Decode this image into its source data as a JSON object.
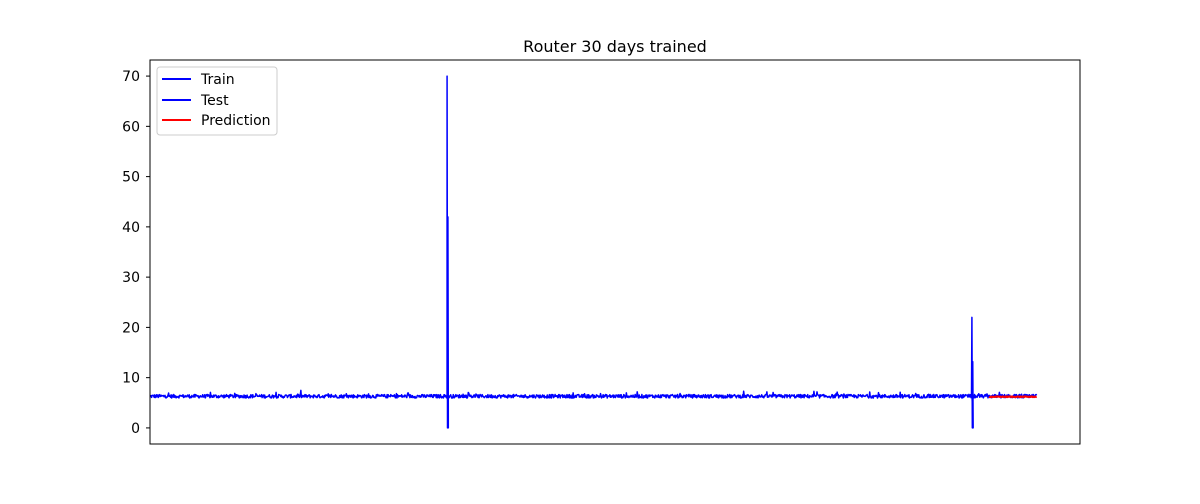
{
  "chart_data": {
    "type": "line",
    "title": "Router 30 days trained",
    "xlabel": "",
    "ylabel": "",
    "x_ticks_visible": false,
    "ylim": [
      -3.2,
      73.2
    ],
    "yticks": [
      0,
      10,
      20,
      30,
      40,
      50,
      60,
      70
    ],
    "grid": false,
    "legend": {
      "placement": "top-left",
      "entries": [
        "Train",
        "Test",
        "Prediction"
      ]
    },
    "series": [
      {
        "name": "Train",
        "color": "#0000ff",
        "x_range": [
          0,
          790
        ],
        "baseline": 6.3,
        "noise": 0.35,
        "spikes": [
          {
            "x": 287.5,
            "high": 70,
            "low": 0
          }
        ]
      },
      {
        "name": "Test",
        "color": "#0000ff",
        "x_range": [
          790,
          858
        ],
        "baseline": 6.3,
        "noise": 0.35,
        "spikes": [
          {
            "x": 795.4,
            "high": 22,
            "low": 0
          }
        ]
      },
      {
        "name": "Prediction",
        "color": "#ff0000",
        "x_range": [
          812,
          858
        ],
        "baseline": 6.2,
        "noise": 0.08,
        "spikes": []
      }
    ]
  }
}
